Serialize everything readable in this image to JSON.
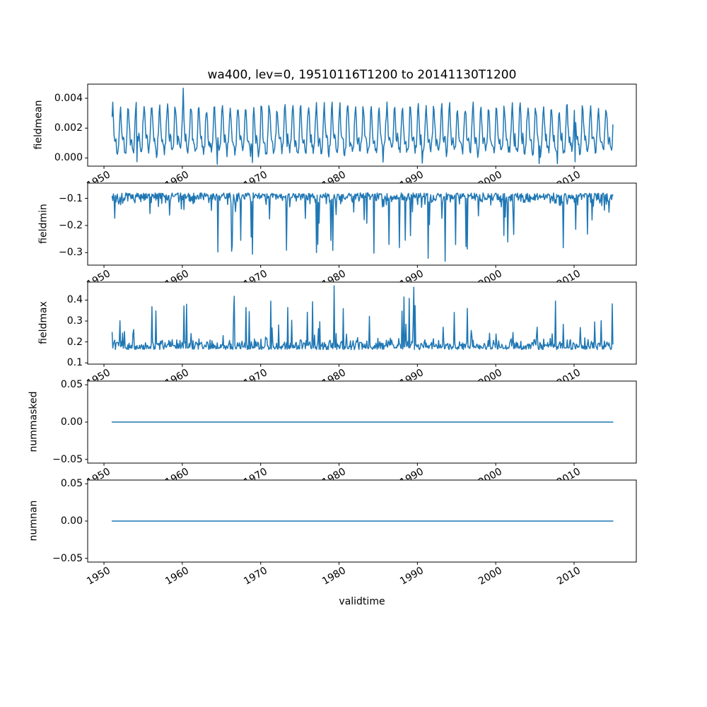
{
  "chart_data": {
    "type": "line",
    "title": "wa400, lev=0, 19510116T1200 to 20141130T1200",
    "xlabel": "validtime",
    "line_color": "#1f77b4",
    "background_color": "#ffffff",
    "grid": false,
    "legend": "none",
    "x_tick_rotation_deg": 30,
    "xlim": [
      1947.92,
      2017.94
    ],
    "x_data_range": [
      1951.04,
      2014.92
    ],
    "x_points_per_year": 12,
    "x_ticks": [
      1950,
      1960,
      1970,
      1980,
      1990,
      2000,
      2010
    ],
    "x_tick_labels": [
      "1950",
      "1960",
      "1970",
      "1980",
      "1990",
      "2000",
      "2010"
    ],
    "subplots": [
      {
        "ylabel": "fieldmean",
        "yticks": [
          0.0,
          0.002,
          0.004
        ],
        "ytick_labels": [
          "0.000",
          "0.002",
          "0.004"
        ],
        "ylim": [
          -0.00055,
          0.00495
        ],
        "pattern": "annual seasonal cycle, monthly values oscillating between about 0.0002 and 0.0045, sharp yearly peaks near 0.0035-0.0045, troughs near 0.0003, rare dips just below 0",
        "series_gen": {
          "kind": "seasonal",
          "seed": 7,
          "base": 0.00085,
          "amp": 0.00275,
          "pow": 1.7,
          "harm": 0.00045,
          "noise": 0.00038,
          "dip_prob": 0.006,
          "clip": [
            -0.00045,
            0.00462
          ]
        },
        "notable_points": [
          {
            "x": 1960.1,
            "y": 0.00468
          },
          {
            "x": 1964.45,
            "y": -0.00042
          },
          {
            "x": 1990.6,
            "y": -0.00035
          }
        ]
      },
      {
        "ylabel": "fieldmin",
        "yticks": [
          -0.1,
          -0.2,
          -0.3
        ],
        "ytick_labels": [
          "−0.1",
          "−0.2",
          "−0.3"
        ],
        "ylim": [
          -0.346,
          -0.044
        ],
        "pattern": "noisy baseline around -0.07 to -0.12 with frequent downward spikes to -0.15..-0.30, deepest spike about -0.33 near 1993",
        "series_gen": {
          "kind": "spiky_down",
          "seed": 21,
          "base": -0.08,
          "jitter": 0.038,
          "spike_prob": 0.09,
          "spike_base": 0.035,
          "spike_amp": 0.2,
          "spike_pow": 1.8,
          "clip": [
            -0.332,
            -0.058
          ]
        },
        "notable_points": [
          {
            "x": 1966.3,
            "y": -0.295
          },
          {
            "x": 1977.1,
            "y": -0.3
          },
          {
            "x": 1979.2,
            "y": -0.292
          },
          {
            "x": 1986.4,
            "y": -0.27
          },
          {
            "x": 1993.5,
            "y": -0.332
          },
          {
            "x": 1996.2,
            "y": -0.278
          },
          {
            "x": 2008.6,
            "y": -0.282
          }
        ]
      },
      {
        "ylabel": "fieldmax",
        "yticks": [
          0.1,
          0.2,
          0.3,
          0.4
        ],
        "ytick_labels": [
          "0.1",
          "0.2",
          "0.3",
          "0.4"
        ],
        "ylim": [
          0.094,
          0.486
        ],
        "pattern": "noisy baseline around 0.15-0.25 with frequent upward spikes to 0.3-0.4, highest spikes about 0.47 near 1979 and 1989",
        "series_gen": {
          "kind": "spiky_up",
          "seed": 33,
          "base": 0.163,
          "jitter": 0.045,
          "spike_prob": 0.09,
          "spike_base": 0.03,
          "spike_amp": 0.2,
          "spike_pow": 2.2,
          "clip": [
            0.112,
            0.442
          ]
        },
        "notable_points": [
          {
            "x": 1960.2,
            "y": 0.372
          },
          {
            "x": 1968.5,
            "y": 0.345
          },
          {
            "x": 1979.4,
            "y": 0.468
          },
          {
            "x": 1988.3,
            "y": 0.415
          },
          {
            "x": 1989.5,
            "y": 0.462
          },
          {
            "x": 1996.4,
            "y": 0.36
          },
          {
            "x": 2007.6,
            "y": 0.395
          }
        ]
      },
      {
        "ylabel": "nummasked",
        "yticks": [
          0.05,
          0.0,
          -0.05
        ],
        "ytick_labels": [
          "0.05",
          "0.00",
          "−0.05"
        ],
        "ylim": [
          -0.055,
          0.055
        ],
        "pattern": "constant zero line across the whole time range",
        "series_gen": {
          "kind": "flat",
          "value": 0
        },
        "notable_points": []
      },
      {
        "ylabel": "numnan",
        "yticks": [
          0.05,
          0.0,
          -0.05
        ],
        "ytick_labels": [
          "0.05",
          "0.00",
          "−0.05"
        ],
        "ylim": [
          -0.055,
          0.055
        ],
        "pattern": "constant zero line across the whole time range",
        "series_gen": {
          "kind": "flat",
          "value": 0
        },
        "notable_points": []
      }
    ]
  }
}
